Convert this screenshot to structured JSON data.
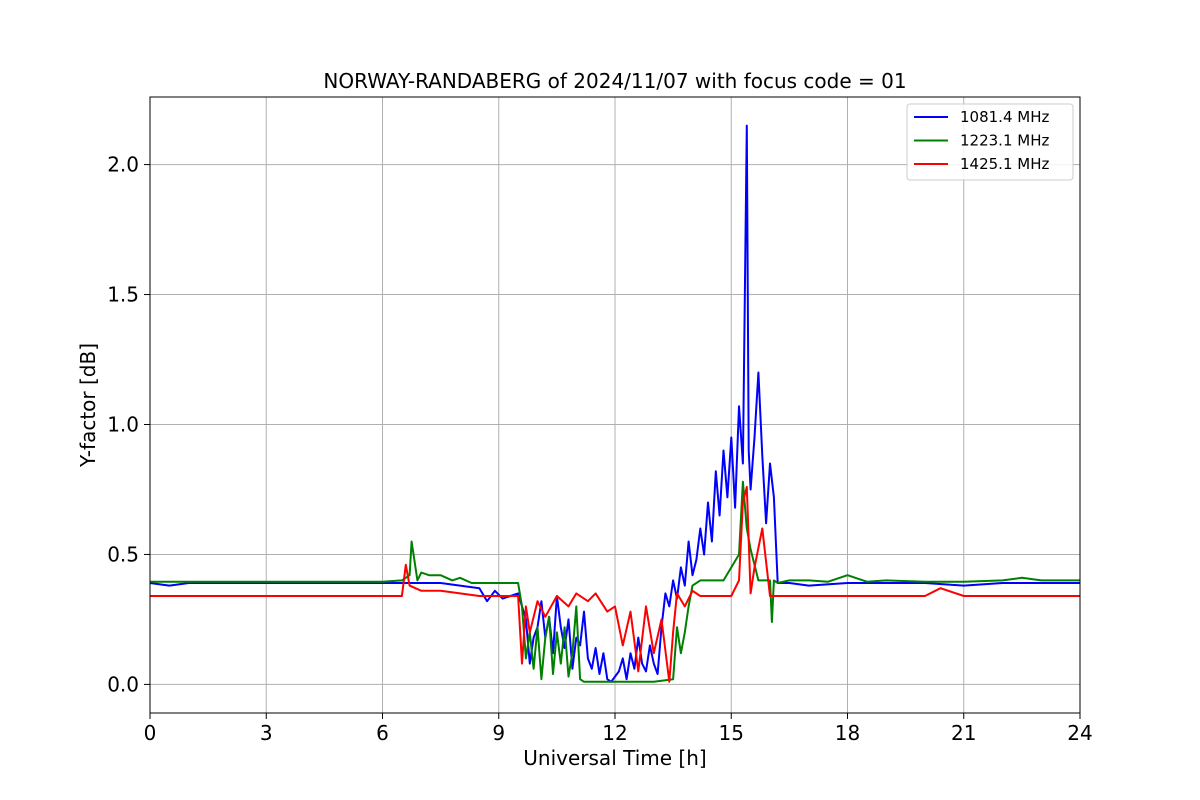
{
  "chart_data": {
    "type": "line",
    "title": "NORWAY-RANDABERG of 2024/11/07 with focus code = 01",
    "xlabel": "Universal Time [h]",
    "ylabel": "Y-factor [dB]",
    "xlim": [
      0,
      24
    ],
    "ylim": [
      -0.11,
      2.26
    ],
    "xticks": [
      0,
      3,
      6,
      9,
      12,
      15,
      18,
      21,
      24
    ],
    "xtick_labels": [
      "0",
      "3",
      "6",
      "9",
      "12",
      "15",
      "18",
      "21",
      "24"
    ],
    "yticks": [
      0.0,
      0.5,
      1.0,
      1.5,
      2.0
    ],
    "ytick_labels": [
      "0.0",
      "0.5",
      "1.0",
      "1.5",
      "2.0"
    ],
    "grid": true,
    "legend_position": "top-right",
    "series": [
      {
        "name": "1081.4 MHz",
        "color": "#0000ff",
        "x": [
          0,
          0.5,
          1,
          2,
          3,
          4,
          5,
          6,
          7,
          7.5,
          8,
          8.5,
          8.7,
          8.9,
          9.1,
          9.3,
          9.5,
          9.7,
          9.8,
          9.9,
          10.0,
          10.1,
          10.2,
          10.3,
          10.4,
          10.5,
          10.6,
          10.7,
          10.8,
          10.9,
          11.0,
          11.1,
          11.2,
          11.3,
          11.4,
          11.5,
          11.6,
          11.7,
          11.8,
          11.9,
          12.0,
          12.1,
          12.2,
          12.3,
          12.4,
          12.5,
          12.6,
          12.7,
          12.8,
          12.9,
          13.0,
          13.1,
          13.2,
          13.3,
          13.4,
          13.5,
          13.6,
          13.7,
          13.8,
          13.9,
          14.0,
          14.1,
          14.2,
          14.3,
          14.4,
          14.5,
          14.6,
          14.7,
          14.8,
          14.9,
          15.0,
          15.1,
          15.2,
          15.3,
          15.4,
          15.45,
          15.5,
          15.6,
          15.7,
          15.8,
          15.9,
          16.0,
          16.1,
          16.2,
          16.5,
          17,
          18,
          19,
          20,
          21,
          22,
          23,
          24
        ],
        "y": [
          0.39,
          0.38,
          0.39,
          0.39,
          0.39,
          0.39,
          0.39,
          0.39,
          0.39,
          0.39,
          0.38,
          0.37,
          0.32,
          0.36,
          0.33,
          0.34,
          0.35,
          0.25,
          0.08,
          0.18,
          0.22,
          0.32,
          0.18,
          0.26,
          0.12,
          0.34,
          0.22,
          0.14,
          0.25,
          0.06,
          0.18,
          0.15,
          0.28,
          0.1,
          0.06,
          0.14,
          0.04,
          0.12,
          0.02,
          0.01,
          0.03,
          0.05,
          0.1,
          0.02,
          0.12,
          0.06,
          0.18,
          0.08,
          0.05,
          0.15,
          0.08,
          0.04,
          0.22,
          0.35,
          0.3,
          0.4,
          0.33,
          0.45,
          0.38,
          0.55,
          0.42,
          0.48,
          0.6,
          0.5,
          0.7,
          0.55,
          0.82,
          0.65,
          0.9,
          0.72,
          0.95,
          0.68,
          1.07,
          0.85,
          2.15,
          0.9,
          0.75,
          0.95,
          1.2,
          0.88,
          0.62,
          0.85,
          0.72,
          0.39,
          0.39,
          0.38,
          0.39,
          0.39,
          0.39,
          0.38,
          0.39,
          0.39,
          0.39
        ]
      },
      {
        "name": "1223.1 MHz",
        "color": "#008000",
        "x": [
          0,
          1,
          2,
          3,
          4,
          5,
          6,
          6.5,
          6.7,
          6.75,
          6.9,
          7.0,
          7.2,
          7.5,
          7.8,
          8.0,
          8.3,
          8.5,
          9.0,
          9.5,
          9.6,
          9.7,
          9.8,
          9.9,
          10.0,
          10.1,
          10.2,
          10.3,
          10.4,
          10.5,
          10.6,
          10.7,
          10.8,
          10.9,
          11.0,
          11.1,
          11.2,
          11.5,
          12.0,
          12.5,
          13.0,
          13.5,
          13.6,
          13.7,
          13.8,
          13.9,
          14.0,
          14.2,
          14.5,
          14.8,
          15.0,
          15.2,
          15.3,
          15.4,
          15.5,
          15.7,
          16.0,
          16.05,
          16.1,
          16.2,
          16.5,
          17,
          17.5,
          18,
          18.5,
          19,
          20,
          21,
          22,
          22.5,
          23,
          24
        ],
        "y": [
          0.395,
          0.395,
          0.395,
          0.395,
          0.395,
          0.395,
          0.395,
          0.4,
          0.42,
          0.55,
          0.4,
          0.43,
          0.42,
          0.42,
          0.4,
          0.41,
          0.39,
          0.39,
          0.39,
          0.39,
          0.3,
          0.1,
          0.2,
          0.06,
          0.22,
          0.02,
          0.18,
          0.26,
          0.04,
          0.2,
          0.08,
          0.22,
          0.03,
          0.12,
          0.3,
          0.02,
          0.01,
          0.01,
          0.01,
          0.01,
          0.01,
          0.02,
          0.22,
          0.12,
          0.2,
          0.3,
          0.38,
          0.4,
          0.4,
          0.4,
          0.45,
          0.5,
          0.78,
          0.6,
          0.52,
          0.4,
          0.4,
          0.24,
          0.4,
          0.39,
          0.4,
          0.4,
          0.395,
          0.42,
          0.395,
          0.4,
          0.395,
          0.395,
          0.4,
          0.41,
          0.4,
          0.4
        ]
      },
      {
        "name": "1425.1 MHz",
        "color": "#ff0000",
        "x": [
          0,
          1,
          2,
          3,
          4,
          5,
          6,
          6.5,
          6.6,
          6.7,
          7.0,
          7.5,
          8.0,
          8.5,
          9.0,
          9.5,
          9.6,
          9.7,
          9.8,
          10.0,
          10.2,
          10.5,
          10.8,
          11.0,
          11.3,
          11.5,
          11.8,
          12.0,
          12.2,
          12.4,
          12.6,
          12.8,
          13.0,
          13.2,
          13.4,
          13.5,
          13.6,
          13.8,
          14.0,
          14.2,
          14.5,
          15.0,
          15.2,
          15.3,
          15.4,
          15.5,
          15.6,
          15.8,
          16.0,
          16.5,
          17,
          18,
          19,
          20,
          20.4,
          21,
          22,
          23,
          24
        ],
        "y": [
          0.34,
          0.34,
          0.34,
          0.34,
          0.34,
          0.34,
          0.34,
          0.34,
          0.46,
          0.38,
          0.36,
          0.36,
          0.35,
          0.34,
          0.34,
          0.34,
          0.08,
          0.3,
          0.2,
          0.32,
          0.26,
          0.34,
          0.3,
          0.35,
          0.32,
          0.35,
          0.28,
          0.3,
          0.15,
          0.28,
          0.05,
          0.3,
          0.12,
          0.25,
          0.01,
          0.2,
          0.35,
          0.3,
          0.36,
          0.34,
          0.34,
          0.34,
          0.4,
          0.7,
          0.76,
          0.35,
          0.45,
          0.6,
          0.34,
          0.34,
          0.34,
          0.34,
          0.34,
          0.34,
          0.37,
          0.34,
          0.34,
          0.34,
          0.34
        ]
      }
    ]
  }
}
